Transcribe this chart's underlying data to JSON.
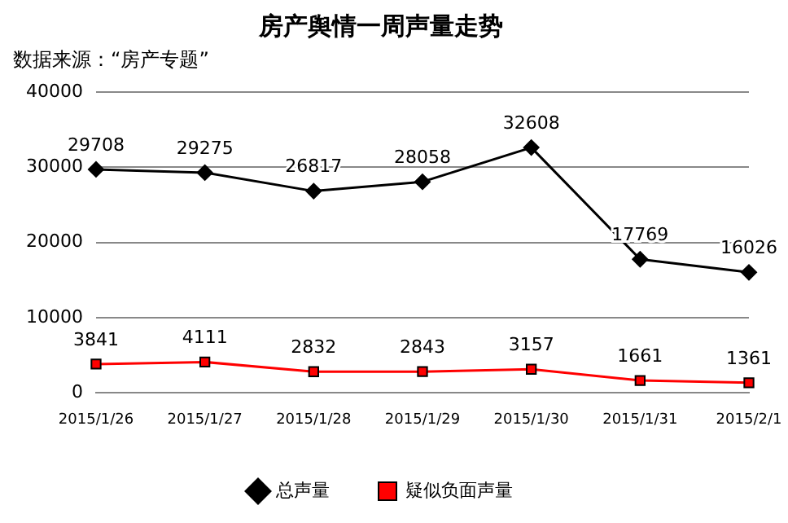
{
  "chart_data": {
    "type": "line",
    "title": "房产舆情一周声量走势",
    "subtitle": "数据来源：“房产专题”",
    "categories": [
      "2015/1/26",
      "2015/1/27",
      "2015/1/28",
      "2015/1/29",
      "2015/1/30",
      "2015/1/31",
      "2015/2/1"
    ],
    "series": [
      {
        "name": "总声量",
        "color": "#000000",
        "marker": "diamond",
        "values": [
          29708,
          29275,
          26817,
          28058,
          32608,
          17769,
          16026
        ]
      },
      {
        "name": "疑似负面声量",
        "color": "#ff0000",
        "marker": "square",
        "values": [
          3841,
          4111,
          2832,
          2843,
          3157,
          1661,
          1361
        ]
      }
    ],
    "ylim": [
      0,
      40000
    ],
    "yticks": [
      0,
      10000,
      20000,
      30000,
      40000
    ],
    "grid": "y",
    "legend": "bottom",
    "data_labels": true
  }
}
